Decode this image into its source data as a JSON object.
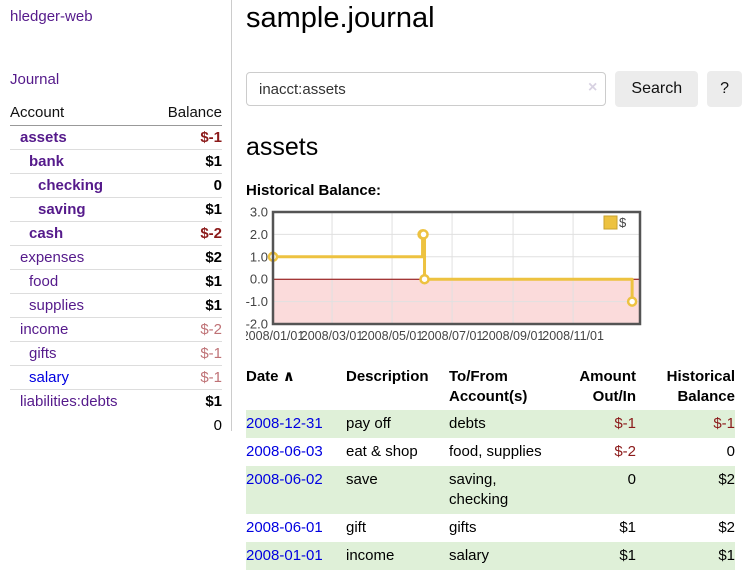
{
  "sidebar": {
    "brand": "hledger-web",
    "nav": {
      "journal": "Journal"
    },
    "accounts_table": {
      "headers": {
        "account": "Account",
        "balance": "Balance"
      },
      "rows": [
        {
          "name": "assets",
          "balance": "$-1",
          "depth": 0,
          "emphasis": true,
          "negative": "strong"
        },
        {
          "name": "bank",
          "balance": "$1",
          "depth": 1,
          "emphasis": true,
          "negative": "none"
        },
        {
          "name": "checking",
          "balance": "0",
          "depth": 2,
          "emphasis": true,
          "negative": "none"
        },
        {
          "name": "saving",
          "balance": "$1",
          "depth": 2,
          "emphasis": true,
          "negative": "none"
        },
        {
          "name": "cash",
          "balance": "$-2",
          "depth": 1,
          "emphasis": true,
          "negative": "strong"
        },
        {
          "name": "expenses",
          "balance": "$2",
          "depth": 0,
          "emphasis": false,
          "negative": "none"
        },
        {
          "name": "food",
          "balance": "$1",
          "depth": 1,
          "emphasis": false,
          "negative": "none"
        },
        {
          "name": "supplies",
          "balance": "$1",
          "depth": 1,
          "emphasis": false,
          "negative": "none"
        },
        {
          "name": "income",
          "balance": "$-2",
          "depth": 0,
          "emphasis": false,
          "negative": "light"
        },
        {
          "name": "gifts",
          "balance": "$-1",
          "depth": 1,
          "emphasis": false,
          "negative": "light"
        },
        {
          "name": "salary",
          "balance": "$-1",
          "depth": 1,
          "emphasis": false,
          "negative": "light",
          "link_color": "blue"
        },
        {
          "name": "liabilities:debts",
          "balance": "$1",
          "depth": 0,
          "emphasis": false,
          "negative": "none"
        }
      ],
      "total": "0"
    }
  },
  "header": {
    "title": "sample.journal"
  },
  "search": {
    "value": "inacct:assets",
    "clear_icon": "×",
    "search_label": "Search",
    "help_label": "?"
  },
  "account_page": {
    "heading": "assets",
    "chart_label": "Historical Balance:"
  },
  "chart_data": {
    "type": "line",
    "step": true,
    "title": "Historical Balance",
    "series": [
      {
        "name": "$",
        "color": "#EDC240",
        "points": [
          [
            "2008/01/01",
            1
          ],
          [
            "2008/06/01",
            2
          ],
          [
            "2008/06/02",
            2
          ],
          [
            "2008/06/03",
            0
          ],
          [
            "2008/12/31",
            -1
          ]
        ]
      }
    ],
    "ylim": [
      -2,
      3
    ],
    "yticks": [
      "3.0",
      "2.0",
      "1.0",
      "0.0",
      "-1.0",
      "-2.0"
    ],
    "xticks": [
      "2008/01/01",
      "2008/03/01",
      "2008/05/01",
      "2008/07/01",
      "2008/09/01",
      "2008/11/01"
    ],
    "x_range": [
      "2008/01/01",
      "2009/01/08"
    ],
    "legend": {
      "label": "$",
      "position": "top-right"
    },
    "grid": true,
    "negative_region_color": "#FBDBDB",
    "zero_line_color": "#8B0000",
    "grid_color": "#E0E0E0",
    "border_color": "#545454",
    "tick_text_color": "#444444"
  },
  "register_table": {
    "headers": {
      "date": "Date",
      "sort_indicator": "∧",
      "description": "Description",
      "accounts": "To/From Account(s)",
      "amount": "Amount Out/In",
      "balance": "Historical Balance"
    },
    "rows": [
      {
        "date": "2008-12-31",
        "description": "pay off",
        "accounts": "debts",
        "amount": "$-1",
        "amount_negative": true,
        "balance": "$-1",
        "balance_negative": true
      },
      {
        "date": "2008-06-03",
        "description": "eat & shop",
        "accounts": "food, supplies",
        "amount": "$-2",
        "amount_negative": true,
        "balance": "0",
        "balance_negative": false
      },
      {
        "date": "2008-06-02",
        "description": "save",
        "accounts": "saving, checking",
        "amount": "0",
        "amount_negative": false,
        "balance": "$2",
        "balance_negative": false
      },
      {
        "date": "2008-06-01",
        "description": "gift",
        "accounts": "gifts",
        "amount": "$1",
        "amount_negative": false,
        "balance": "$2",
        "balance_negative": false
      },
      {
        "date": "2008-01-01",
        "description": "income",
        "accounts": "salary",
        "amount": "$1",
        "amount_negative": false,
        "balance": "$1",
        "balance_negative": false
      }
    ]
  }
}
